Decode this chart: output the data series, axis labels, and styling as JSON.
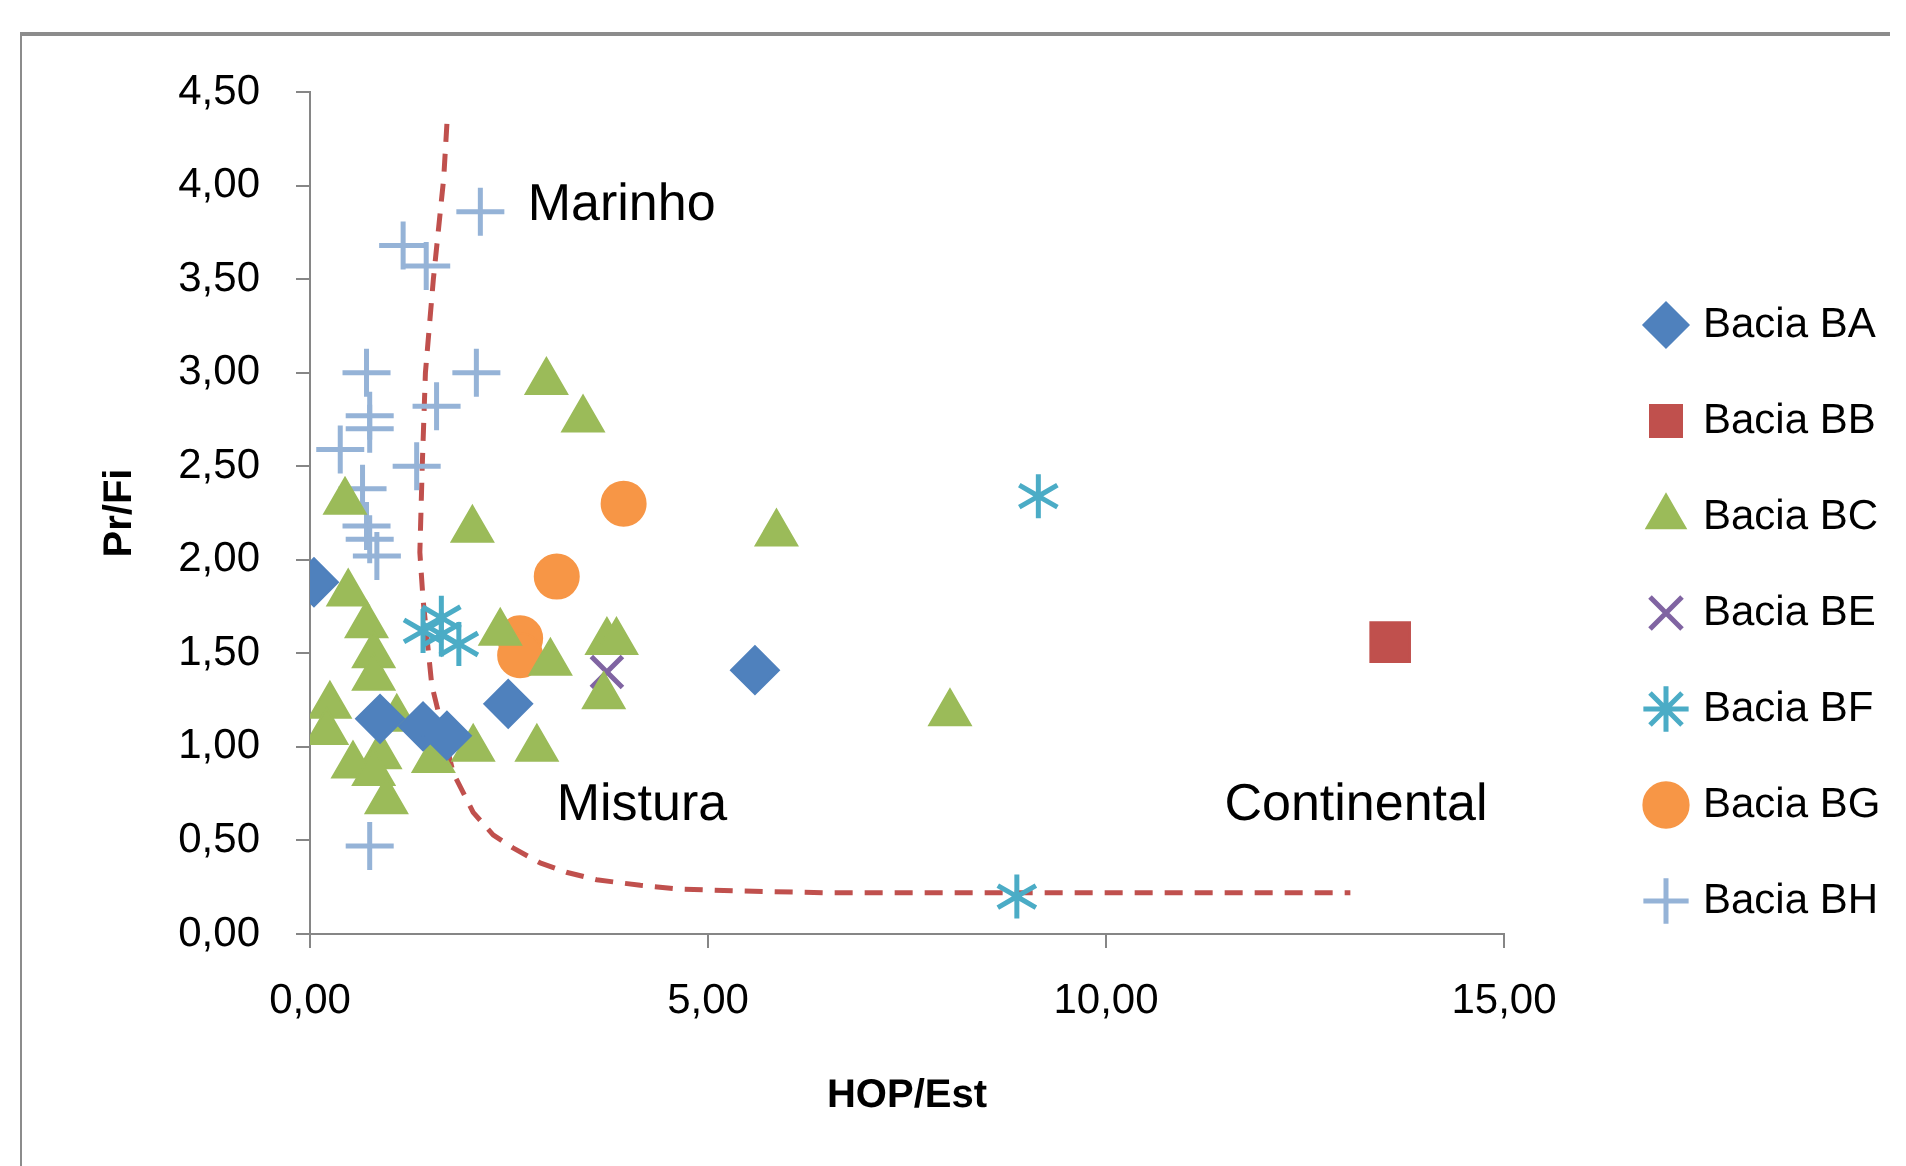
{
  "chart_data": {
    "type": "scatter",
    "xlabel": "HOP/Est",
    "ylabel": "Pr/Fi",
    "xlim": [
      0,
      15
    ],
    "xticks": [
      {
        "value": 0,
        "label": "0,00"
      },
      {
        "value": 5,
        "label": "5,00"
      },
      {
        "value": 10,
        "label": "10,00"
      },
      {
        "value": 15,
        "label": "15,00"
      }
    ],
    "ylim": [
      0,
      4.5
    ],
    "yticks": [
      {
        "value": 0,
        "label": "0,00"
      },
      {
        "value": 0.5,
        "label": "0,50"
      },
      {
        "value": 1,
        "label": "1,00"
      },
      {
        "value": 1.5,
        "label": "1,50"
      },
      {
        "value": 2,
        "label": "2,00"
      },
      {
        "value": 2.5,
        "label": "2,50"
      },
      {
        "value": 3,
        "label": "3,00"
      },
      {
        "value": 3.5,
        "label": "3,50"
      },
      {
        "value": 4,
        "label": "4,00"
      },
      {
        "value": 4.5,
        "label": "4,50"
      }
    ],
    "legend": "right",
    "annotations": [
      "Marinho",
      "Mistura",
      "Continental"
    ],
    "series": [
      {
        "name": "Bacia BA",
        "color": "#4f81bd",
        "marker": "diamond",
        "x": [
          0.05,
          0.88,
          1.42,
          1.72,
          2.49,
          5.59
        ],
        "values": [
          1.88,
          1.15,
          1.11,
          1.06,
          1.23,
          1.41
        ]
      },
      {
        "name": "Bacia BB",
        "color": "#c0504d",
        "marker": "square",
        "x": [
          13.57
        ],
        "values": [
          1.56
        ]
      },
      {
        "name": "Bacia BC",
        "color": "#9bbb59",
        "marker": "triangle",
        "x": [
          2.97,
          3.43,
          0.44,
          2.04,
          5.86,
          0.48,
          0.71,
          2.39,
          3.73,
          3.85,
          0.8,
          3.02,
          0.8,
          3.69,
          0.25,
          8.04,
          1.09,
          0.21,
          2.05,
          2.85,
          1.55,
          0.88,
          0.54,
          0.8,
          0.96
        ],
        "values": [
          2.95,
          2.75,
          2.31,
          2.16,
          2.14,
          1.82,
          1.65,
          1.61,
          1.56,
          1.56,
          1.49,
          1.45,
          1.37,
          1.27,
          1.22,
          1.18,
          1.15,
          1.08,
          0.99,
          0.99,
          0.93,
          0.95,
          0.9,
          0.86,
          0.71
        ]
      },
      {
        "name": "Bacia BE",
        "color": "#8064a2",
        "marker": "x",
        "x": [
          3.73
        ],
        "values": [
          1.4
        ]
      },
      {
        "name": "Bacia BF",
        "color": "#4bacc6",
        "marker": "star",
        "x": [
          1.42,
          1.65,
          1.65,
          1.87,
          9.15,
          8.88
        ],
        "values": [
          1.62,
          1.69,
          1.6,
          1.55,
          2.34,
          0.2
        ]
      },
      {
        "name": "Bacia BG",
        "color": "#f79646",
        "marker": "circle",
        "x": [
          3.94,
          3.1,
          2.64,
          2.64
        ],
        "values": [
          2.3,
          1.91,
          1.58,
          1.49
        ]
      },
      {
        "name": "Bacia BH",
        "color": "#95b3d7",
        "marker": "cross",
        "x": [
          2.14,
          1.17,
          1.46,
          0.71,
          2.09,
          1.59,
          0.75,
          0.75,
          0.38,
          1.34,
          0.66,
          0.71,
          0.75,
          0.84,
          0.75
        ],
        "values": [
          3.86,
          3.68,
          3.57,
          3.0,
          3.0,
          2.82,
          2.77,
          2.7,
          2.59,
          2.5,
          2.38,
          2.18,
          2.11,
          2.02,
          0.47
        ]
      },
      {
        "type": "line",
        "color": "#c0504d",
        "line_style": "dashed",
        "marker": "none",
        "x": [
          1.72,
          1.68,
          1.55,
          1.45,
          1.41,
          1.38,
          1.42,
          1.53,
          1.8,
          2.05,
          2.3,
          2.55,
          2.89,
          3.22,
          3.6,
          4.15,
          4.65,
          5.4,
          6.5,
          13.07
        ],
        "values": [
          4.33,
          4.04,
          3.5,
          3.0,
          2.5,
          2.04,
          1.79,
          1.33,
          0.86,
          0.65,
          0.53,
          0.46,
          0.38,
          0.33,
          0.29,
          0.26,
          0.24,
          0.23,
          0.22,
          0.22
        ]
      }
    ]
  }
}
